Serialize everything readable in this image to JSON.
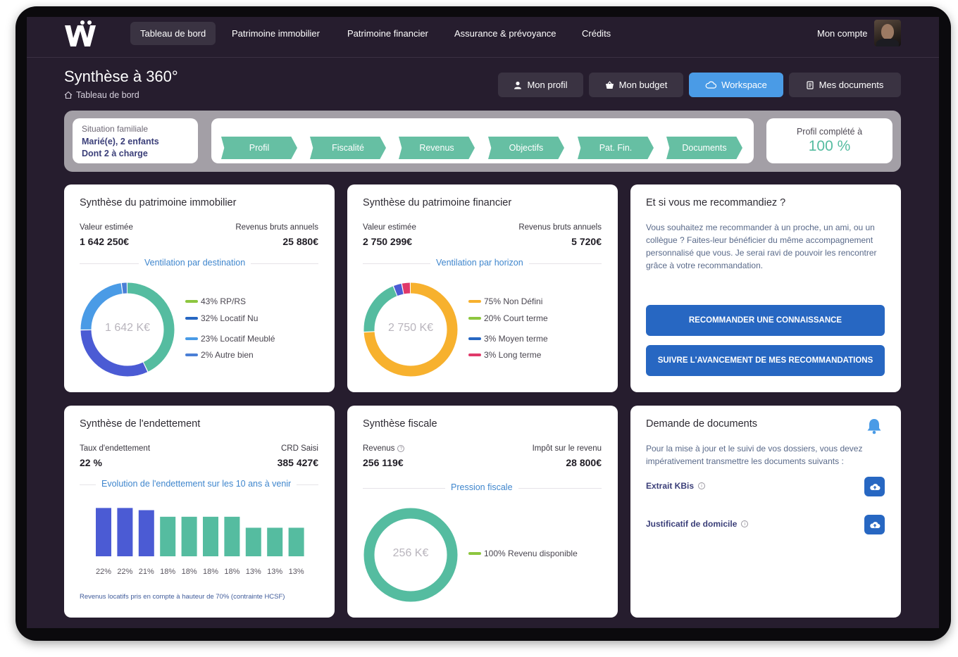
{
  "nav": {
    "items": [
      "Tableau de bord",
      "Patrimoine immobilier",
      "Patrimoine financier",
      "Assurance & prévoyance",
      "Crédits"
    ],
    "account_label": "Mon compte"
  },
  "header": {
    "title": "Synthèse à 360°",
    "breadcrumb": "Tableau de bord",
    "buttons": [
      "Mon profil",
      "Mon budget",
      "Workspace",
      "Mes documents"
    ]
  },
  "situation": {
    "title": "Situation familiale",
    "line1": "Marié(e), 2 enfants",
    "line2": "Dont 2 à charge"
  },
  "steps": [
    "Profil",
    "Fiscalité",
    "Revenus",
    "Objectifs",
    "Pat. Fin.",
    "Documents"
  ],
  "completion": {
    "label": "Profil complété à",
    "value": "100 %"
  },
  "immobilier": {
    "title": "Synthèse du patrimoine immobilier",
    "left_label": "Valeur estimée",
    "left_value": "1 642 250€",
    "right_label": "Revenus bruts annuels",
    "right_value": "25 880€",
    "subhead": "Ventilation par destination",
    "center": "1 642 K€",
    "legend": [
      "43% RP/RS",
      "32% Locatif Nu",
      "23% Locatif Meublé",
      "2% Autre bien"
    ],
    "colors": [
      "#8dc63f",
      "#2767c2",
      "#4a9be6",
      "#4a7fd6"
    ]
  },
  "financier": {
    "title": "Synthèse du patrimoine financier",
    "left_label": "Valeur estimée",
    "left_value": "2 750 299€",
    "right_label": "Revenus bruts annuels",
    "right_value": "5 720€",
    "subhead": "Ventilation par horizon",
    "center": "2 750 K€",
    "legend": [
      "75% Non Défini",
      "20% Court terme",
      "3% Moyen terme",
      "3% Long terme"
    ],
    "colors": [
      "#f7b12e",
      "#8dc63f",
      "#2767c2",
      "#e0396a"
    ]
  },
  "recommande": {
    "title": "Et si vous me recommandiez ?",
    "text": "Vous souhaitez me recommander à un proche, un ami, ou un collègue ? Faites-leur bénéficier du même accompagnement personnalisé que vous. Je serai ravi de pouvoir les rencontrer grâce à votre recommandation.",
    "btn1": "RECOMMANDER UNE CONNAISSANCE",
    "btn2": "SUIVRE L'AVANCEMENT DE MES RECOMMANDATIONS"
  },
  "endettement": {
    "title": "Synthèse de l'endettement",
    "left_label": "Taux d'endettement",
    "left_value": "22 %",
    "right_label": "CRD Saisi",
    "right_value": "385 427€",
    "subhead": "Evolution de l'endettement sur les 10 ans à venir",
    "footnote": "Revenus locatifs pris en compte à hauteur de 70% (contrainte HCSF)"
  },
  "fiscale": {
    "title": "Synthèse fiscale",
    "left_label": "Revenus",
    "left_value": "256 119€",
    "right_label": "Impôt sur le revenu",
    "right_value": "28 800€",
    "subhead": "Pression fiscale",
    "center": "256 K€",
    "legend": [
      "100% Revenu disponible"
    ]
  },
  "documents": {
    "title": "Demande de documents",
    "text": "Pour la mise à jour et le suivi de vos dossiers, vous devez impérativement transmettre les documents suivants :",
    "items": [
      "Extrait KBis",
      "Justificatif de domicile"
    ]
  },
  "chart_data": [
    {
      "type": "pie",
      "title": "Ventilation par destination",
      "categories": [
        "RP/RS",
        "Locatif Nu",
        "Locatif Meublé",
        "Autre bien"
      ],
      "values": [
        43,
        32,
        23,
        2
      ],
      "colors": [
        "#55bca0",
        "#4b5bd4",
        "#4a9be6",
        "#4a7fd6"
      ]
    },
    {
      "type": "pie",
      "title": "Ventilation par horizon",
      "categories": [
        "Non Défini",
        "Court terme",
        "Moyen terme",
        "Long terme"
      ],
      "values": [
        75,
        20,
        3,
        3
      ],
      "colors": [
        "#f7b12e",
        "#55bca0",
        "#4b5bd4",
        "#e0396a"
      ]
    },
    {
      "type": "bar",
      "title": "Evolution de l'endettement sur les 10 ans à venir",
      "categories": [
        "1",
        "2",
        "3",
        "4",
        "5",
        "6",
        "7",
        "8",
        "9",
        "10"
      ],
      "values": [
        22,
        22,
        21,
        18,
        18,
        18,
        18,
        13,
        13,
        13
      ],
      "labels": [
        "22%",
        "22%",
        "21%",
        "18%",
        "18%",
        "18%",
        "18%",
        "13%",
        "13%",
        "13%"
      ],
      "colors": [
        "#4b5bd4",
        "#4b5bd4",
        "#4b5bd4",
        "#55bca0",
        "#55bca0",
        "#55bca0",
        "#55bca0",
        "#55bca0",
        "#55bca0",
        "#55bca0"
      ]
    },
    {
      "type": "pie",
      "title": "Pression fiscale",
      "categories": [
        "Revenu disponible"
      ],
      "values": [
        100
      ],
      "colors": [
        "#55bca0"
      ]
    }
  ]
}
